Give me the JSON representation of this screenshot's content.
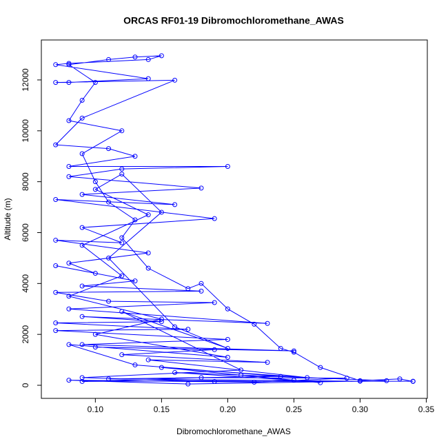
{
  "chart_data": {
    "type": "line",
    "title": "ORCAS RF01-19 Dibromochloromethane_AWAS",
    "x_label": "Dibromochloromethane_AWAS",
    "y_label": "Altitude (m)",
    "color": "#0000ff",
    "marker": "circle",
    "x": [
      0.34,
      0.33,
      0.3,
      0.27,
      0.25,
      0.24,
      0.22,
      0.2,
      0.18,
      0.17,
      0.14,
      0.12,
      0.13,
      0.11,
      0.1,
      0.09,
      0.12,
      0.08,
      0.09,
      0.1,
      0.08,
      0.11,
      0.13,
      0.15,
      0.14,
      0.08,
      0.07,
      0.14,
      0.08,
      0.07,
      0.16,
      0.09,
      0.07,
      0.11,
      0.13,
      0.08,
      0.2,
      0.12,
      0.08,
      0.18,
      0.09,
      0.16,
      0.07,
      0.19,
      0.09,
      0.12,
      0.07,
      0.14,
      0.08,
      0.1,
      0.07,
      0.13,
      0.09,
      0.18,
      0.07,
      0.11,
      0.19,
      0.08,
      0.23,
      0.09,
      0.15,
      0.07,
      0.17,
      0.07,
      0.2,
      0.09,
      0.25,
      0.1,
      0.19,
      0.12,
      0.23,
      0.14,
      0.26,
      0.15,
      0.27,
      0.21,
      0.32,
      0.16,
      0.25,
      0.09,
      0.18,
      0.29,
      0.22,
      0.08,
      0.17,
      0.3,
      0.11,
      0.24,
      0.13,
      0.08,
      0.2,
      0.1,
      0.15,
      0.08,
      0.12,
      0.09,
      0.14,
      0.1,
      0.12,
      0.15,
      0.11,
      0.16,
      0.2,
      0.12,
      0.21,
      0.09,
      0.19,
      0.34
    ],
    "values": [
      150,
      250,
      180,
      700,
      1300,
      1450,
      2400,
      3000,
      4000,
      3800,
      4600,
      5800,
      6500,
      7200,
      8000,
      9100,
      10000,
      10400,
      11200,
      11900,
      12600,
      12800,
      12900,
      12950,
      12800,
      12650,
      12600,
      12050,
      11900,
      11900,
      11990,
      10500,
      9450,
      9300,
      9000,
      8600,
      8600,
      8500,
      8200,
      7750,
      7500,
      7100,
      7300,
      6550,
      6200,
      5600,
      5700,
      5200,
      4800,
      4400,
      4700,
      4100,
      3900,
      3700,
      3650,
      3300,
      3250,
      3000,
      2430,
      2700,
      2500,
      2450,
      2200,
      2150,
      1800,
      1600,
      1350,
      1500,
      1400,
      1200,
      900,
      1000,
      300,
      700,
      100,
      400,
      180,
      500,
      200,
      150,
      300,
      280,
      120,
      200,
      50,
      160,
      250,
      350,
      800,
      1600,
      1100,
      2000,
      2600,
      3500,
      4300,
      5500,
      6700,
      7700,
      8300,
      6800,
      5000,
      2300,
      1450,
      2900,
      600,
      300,
      150,
      160
    ],
    "xlim": [
      0.0592,
      0.3508
    ],
    "ylim": [
      -515,
      13570
    ],
    "xticks": [
      {
        "value": 0.1,
        "label": "0.10"
      },
      0.15,
      {
        "value": 0.2,
        "label": "0.20"
      },
      0.25,
      {
        "value": 0.3,
        "label": "0.30"
      },
      0.35
    ],
    "yticks": [
      0,
      2000,
      4000,
      6000,
      8000,
      10000,
      12000
    ]
  }
}
